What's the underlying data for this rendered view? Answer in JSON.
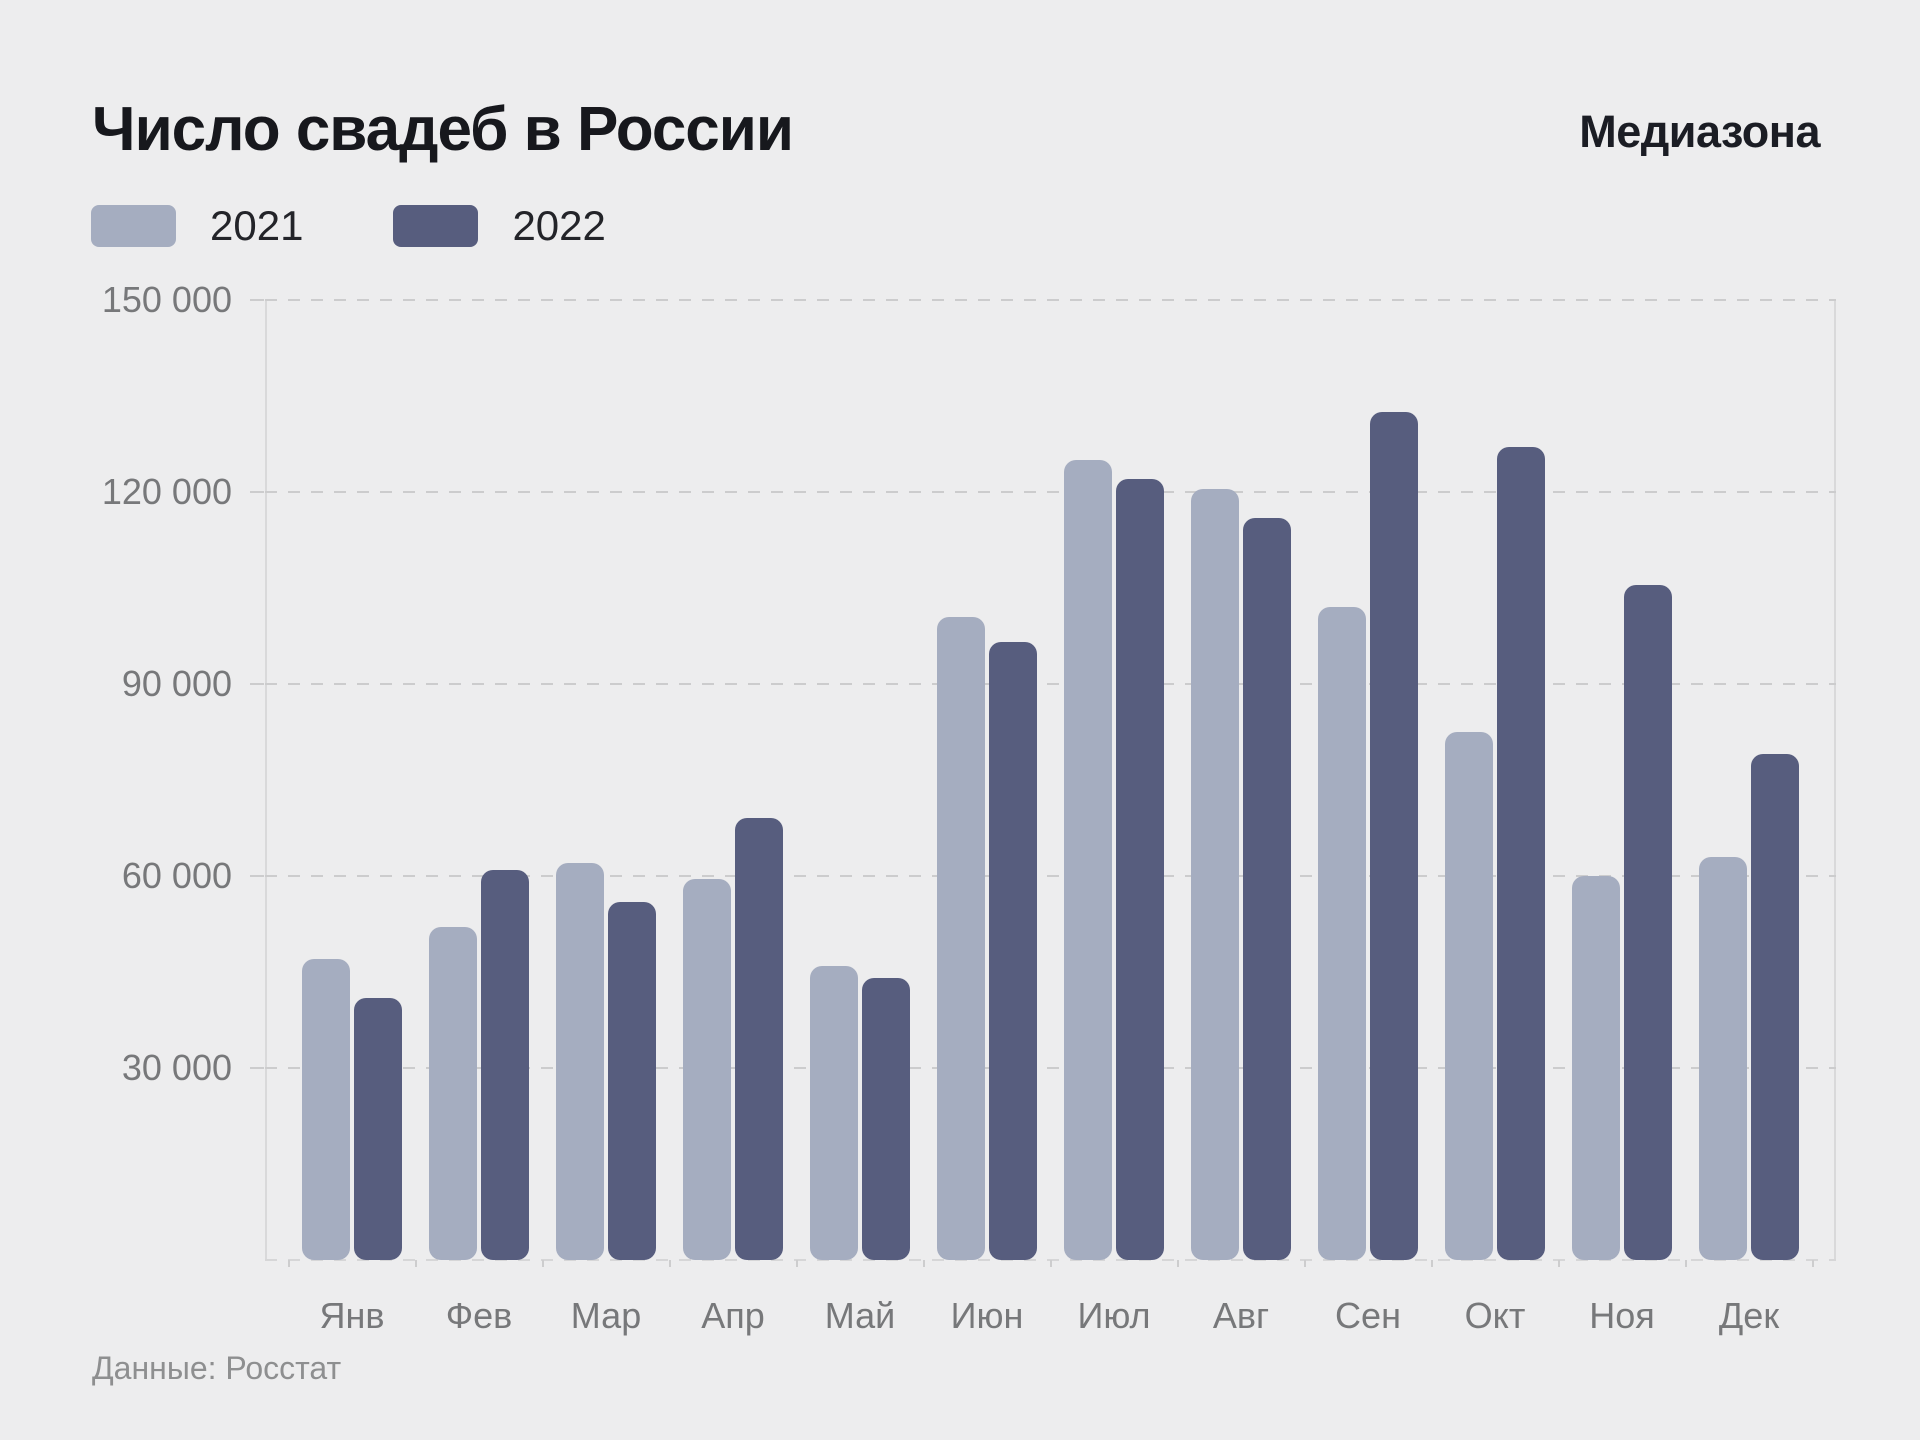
{
  "title": "Число свадеб в России",
  "brand": "Медиазона",
  "footer": "Данные: Росстат",
  "colors": {
    "background": "#ededee",
    "series_2021": "#a5adc0",
    "series_2022": "#575d7e",
    "title_text": "#17181d",
    "axis_text": "#77787a",
    "gridline": "#cccccd",
    "footer_text": "#8e8f90"
  },
  "legend": [
    {
      "label": "2021",
      "color": "#a5adc0"
    },
    {
      "label": "2022",
      "color": "#575d7e"
    }
  ],
  "chart_data": {
    "type": "bar",
    "title": "Число свадеб в России",
    "categories": [
      "Янв",
      "Фев",
      "Мар",
      "Апр",
      "Май",
      "Июн",
      "Июл",
      "Авг",
      "Сен",
      "Окт",
      "Ноя",
      "Дек"
    ],
    "series": [
      {
        "name": "2021",
        "color": "#a5adc0",
        "values": [
          47000,
          52000,
          62000,
          59500,
          46000,
          100500,
          125000,
          120500,
          102000,
          82500,
          60000,
          63000
        ]
      },
      {
        "name": "2022",
        "color": "#575d7e",
        "values": [
          41000,
          61000,
          56000,
          69000,
          44000,
          96500,
          122000,
          116000,
          132500,
          127000,
          105500,
          79000
        ]
      }
    ],
    "xlabel": "",
    "ylabel": "",
    "ylim": [
      0,
      150000
    ],
    "yticks": [
      {
        "value": 150000,
        "label": "150 000"
      },
      {
        "value": 120000,
        "label": "120 000"
      },
      {
        "value": 90000,
        "label": "90 000"
      },
      {
        "value": 60000,
        "label": "60 000"
      },
      {
        "value": 30000,
        "label": "30 000"
      }
    ],
    "grid": "horizontal-dashed",
    "legend_position": "top-left",
    "source": "Данные: Росстат"
  }
}
